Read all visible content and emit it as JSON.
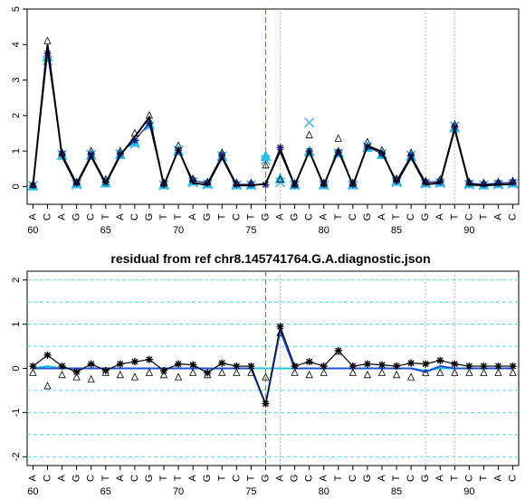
{
  "chart_data": [
    {
      "type": "line",
      "title": "",
      "xlabel": "",
      "ylabel": "",
      "xlim": [
        59.6,
        93.4
      ],
      "ylim": [
        -0.5,
        5
      ],
      "yticks": [
        0,
        1,
        2,
        3,
        4,
        5
      ],
      "xticks": [
        60,
        65,
        70,
        75,
        80,
        85,
        90
      ],
      "sequence": [
        "A",
        "C",
        "A",
        "G",
        "C",
        "T",
        "A",
        "C",
        "G",
        "T",
        "T",
        "A",
        "G",
        "T",
        "C",
        "T",
        "G",
        "A",
        "G",
        "C",
        "A",
        "T",
        "C",
        "G",
        "A",
        "T",
        "C",
        "G",
        "A",
        "T",
        "C",
        "T",
        "A",
        "C"
      ],
      "x": [
        60,
        61,
        62,
        63,
        64,
        65,
        66,
        67,
        68,
        69,
        70,
        71,
        72,
        73,
        74,
        75,
        76,
        77,
        78,
        79,
        80,
        81,
        82,
        83,
        84,
        85,
        86,
        87,
        88,
        89,
        90,
        91,
        92,
        93
      ],
      "vlines": [
        {
          "x": 76,
          "style": "dashed",
          "color": "#e8443a"
        },
        {
          "x": 77,
          "style": "dotted",
          "color": "#f08a80"
        },
        {
          "x": 87,
          "style": "dotted",
          "color": "#f08a80"
        },
        {
          "x": 89,
          "style": "dotted",
          "color": "#f08a80"
        }
      ],
      "series": [
        {
          "values": [
            0.02,
            3.65,
            0.88,
            0.08,
            0.88,
            0.1,
            0.9,
            1.25,
            1.75,
            0.05,
            1.0,
            0.15,
            0.08,
            0.85,
            0.05,
            0.05,
            0.85,
            0.22,
            0.05,
            0.98,
            0.05,
            0.95,
            0.05,
            1.1,
            0.9,
            0.15,
            0.85,
            0.1,
            0.12,
            1.65,
            0.08,
            0.05,
            0.08,
            0.1
          ],
          "color": "#1ec8e0",
          "marker": "filled-triangle"
        },
        {
          "values": [
            0.02,
            3.55,
            0.9,
            0.06,
            0.9,
            0.12,
            0.92,
            1.2,
            1.7,
            0.04,
            1.02,
            0.12,
            0.06,
            0.86,
            0.04,
            0.04,
            0.75,
            0.12,
            0.04,
            1.8,
            0.04,
            0.92,
            0.04,
            1.12,
            0.92,
            0.12,
            0.88,
            0.08,
            0.1,
            1.7,
            0.06,
            0.04,
            0.06,
            0.08
          ],
          "color": "#4ab0f0",
          "marker": "x"
        },
        {
          "values": [
            0.03,
            3.75,
            0.92,
            0.1,
            0.9,
            0.12,
            0.92,
            1.3,
            1.78,
            0.06,
            1.02,
            0.17,
            0.1,
            0.88,
            0.06,
            0.06,
            0.05,
            1.1,
            0.04,
            1.0,
            0.06,
            0.97,
            0.06,
            1.12,
            0.92,
            0.17,
            0.87,
            0.12,
            0.14,
            1.68,
            0.1,
            0.06,
            0.1,
            0.12
          ],
          "color": "#1a1a8a",
          "marker": "star"
        },
        {
          "values": [
            0.02,
            4.0,
            0.85,
            0.05,
            0.85,
            0.08,
            0.88,
            1.4,
            1.95,
            0.03,
            1.05,
            0.1,
            0.05,
            0.82,
            0.03,
            0.03,
            0.08,
            1.0,
            0.03,
            1.0,
            0.03,
            1.05,
            0.03,
            1.15,
            0.98,
            0.1,
            0.82,
            0.06,
            0.1,
            1.62,
            0.05,
            0.03,
            0.05,
            0.07
          ],
          "color": "#000000",
          "marker": "line"
        },
        {
          "values": [
            0.05,
            4.1,
            0.95,
            0.12,
            1.0,
            0.2,
            1.0,
            1.5,
            2.0,
            0.1,
            1.15,
            0.22,
            0.12,
            0.95,
            0.1,
            0.1,
            0.6,
            0.2,
            0.08,
            1.45,
            0.1,
            1.35,
            0.1,
            1.25,
            1.02,
            0.22,
            0.95,
            0.15,
            0.2,
            1.75,
            0.12,
            0.1,
            0.12,
            0.15
          ],
          "color": "#000000",
          "marker": "open-triangle"
        }
      ]
    },
    {
      "type": "line",
      "title": "residual from ref chr8.145741764.G.A.diagnostic.json",
      "xlabel": "",
      "ylabel": "",
      "xlim": [
        59.6,
        93.4
      ],
      "ylim": [
        -2.2,
        2.2
      ],
      "yticks": [
        -2,
        -1,
        0,
        1,
        2
      ],
      "ygrid": [
        -2,
        -1.5,
        -1,
        -0.5,
        0.5,
        1,
        1.5,
        2
      ],
      "xticks": [
        60,
        65,
        70,
        75,
        80,
        85,
        90
      ],
      "sequence": [
        "A",
        "C",
        "A",
        "G",
        "C",
        "T",
        "A",
        "C",
        "G",
        "T",
        "T",
        "A",
        "G",
        "T",
        "C",
        "T",
        "G",
        "A",
        "G",
        "C",
        "A",
        "T",
        "C",
        "G",
        "A",
        "T",
        "C",
        "G",
        "A",
        "T",
        "C",
        "T",
        "A",
        "C"
      ],
      "x": [
        60,
        61,
        62,
        63,
        64,
        65,
        66,
        67,
        68,
        69,
        70,
        71,
        72,
        73,
        74,
        75,
        76,
        77,
        78,
        79,
        80,
        81,
        82,
        83,
        84,
        85,
        86,
        87,
        88,
        89,
        90,
        91,
        92,
        93
      ],
      "vlines": [
        {
          "x": 76,
          "style": "dashed",
          "color": "#e8443a"
        },
        {
          "x": 77,
          "style": "dotted",
          "color": "#f08a80"
        },
        {
          "x": 87,
          "style": "dotted",
          "color": "#f08a80"
        },
        {
          "x": 89,
          "style": "dotted",
          "color": "#f08a80"
        }
      ],
      "series": [
        {
          "values": [
            0,
            0.05,
            0,
            0,
            0,
            0,
            0,
            0,
            0,
            0,
            0,
            0,
            0,
            0,
            0,
            0,
            0,
            0,
            0,
            0,
            0,
            0,
            0,
            0,
            0,
            0,
            0,
            -0.05,
            0,
            0,
            0,
            0,
            0,
            0
          ],
          "color": "#1ec8e0",
          "marker": "line"
        },
        {
          "values": [
            0,
            0,
            0,
            0,
            0,
            0,
            0,
            0,
            0,
            0,
            0,
            0,
            0,
            0,
            0,
            0,
            -0.82,
            0.85,
            0,
            0,
            0,
            0,
            0,
            0,
            0,
            0,
            0,
            -0.08,
            0.05,
            0,
            0,
            0,
            0,
            0
          ],
          "color": "#1a50d8",
          "marker": "line"
        },
        {
          "values": [
            0.05,
            0.3,
            0.05,
            -0.08,
            0.1,
            -0.05,
            0.1,
            0.15,
            0.2,
            -0.05,
            0.1,
            0.08,
            -0.1,
            0.12,
            0.05,
            0.05,
            -0.8,
            0.95,
            0.05,
            0.15,
            0.05,
            0.4,
            0.05,
            0.1,
            0.08,
            0.05,
            0.12,
            0.1,
            0.18,
            0.1,
            0.05,
            0.05,
            0.05,
            0.05
          ],
          "color": "#000000",
          "marker": "star"
        },
        {
          "values": [
            -0.1,
            -0.4,
            -0.15,
            -0.2,
            -0.25,
            -0.1,
            -0.15,
            -0.2,
            -0.1,
            -0.15,
            -0.2,
            -0.1,
            -0.15,
            -0.1,
            -0.1,
            -0.1,
            -0.2,
            0.8,
            -0.1,
            -0.15,
            -0.1,
            0.38,
            -0.1,
            -0.15,
            -0.1,
            -0.15,
            -0.2,
            -0.1,
            -0.1,
            -0.1,
            -0.1,
            -0.1,
            -0.1,
            -0.1
          ],
          "color": "#000000",
          "marker": "open-triangle"
        }
      ]
    }
  ]
}
